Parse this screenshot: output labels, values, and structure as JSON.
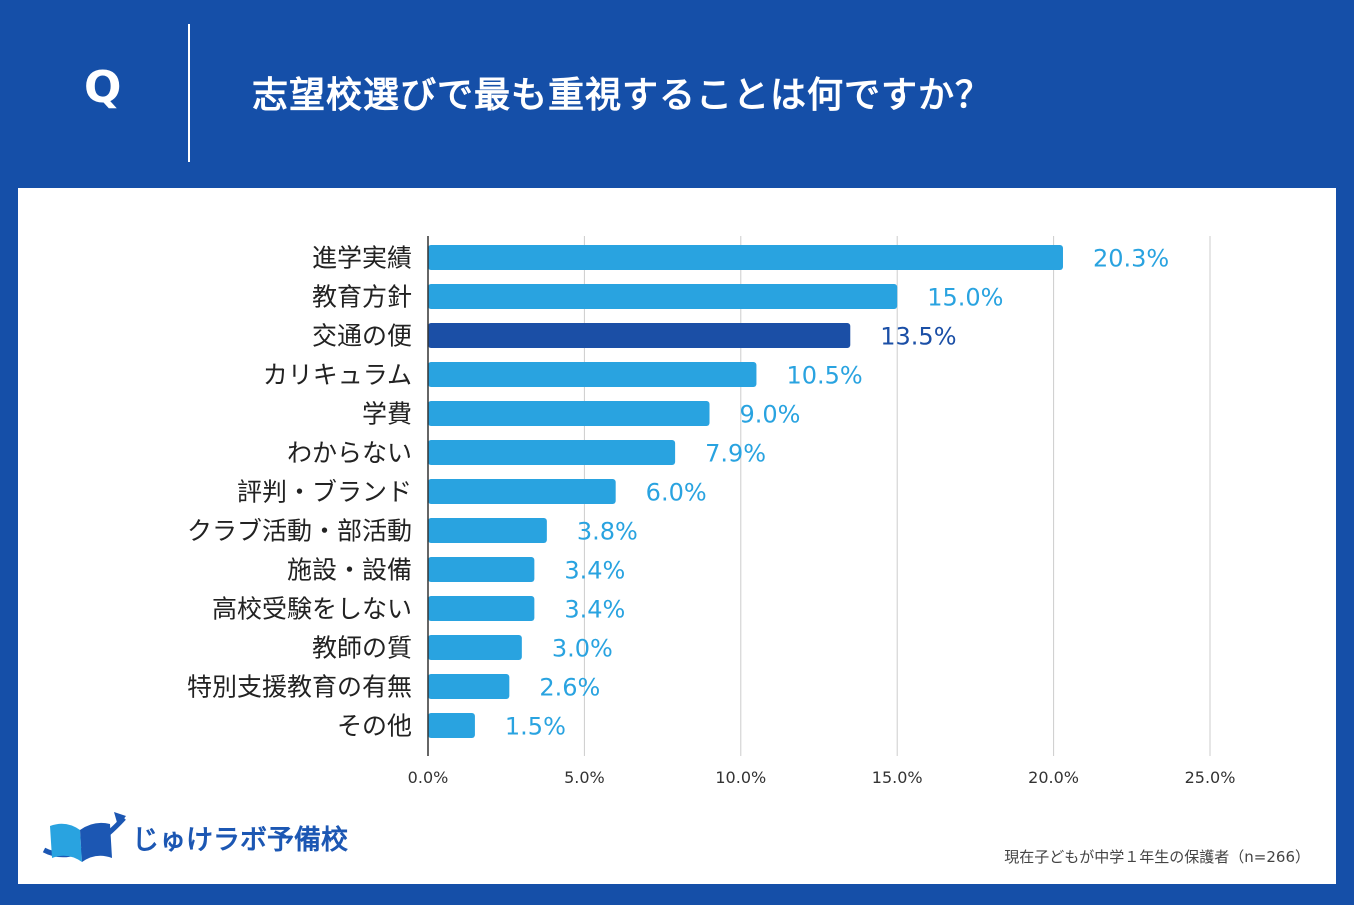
{
  "header": {
    "q_label": "Q",
    "question": "志望校選びで最も重視することは何ですか？"
  },
  "chart_data": {
    "type": "bar",
    "orientation": "horizontal",
    "categories": [
      "進学実績",
      "教育方針",
      "交通の便",
      "カリキュラム",
      "学費",
      "わからない",
      "評判・ブランド",
      "クラブ活動・部活動",
      "施設・設備",
      "高校受験をしない",
      "教師の質",
      "特別支援教育の有無",
      "その他"
    ],
    "values": [
      20.3,
      15.0,
      13.5,
      10.5,
      9.0,
      7.9,
      6.0,
      3.8,
      3.4,
      3.4,
      3.0,
      2.6,
      1.5
    ],
    "value_labels": [
      "20.3%",
      "15.0%",
      "13.5%",
      "10.5%",
      "9.0%",
      "7.9%",
      "6.0%",
      "3.8%",
      "3.4%",
      "3.4%",
      "3.0%",
      "2.6%",
      "1.5%"
    ],
    "highlight_index": 2,
    "xlim": [
      0,
      25
    ],
    "xticks": [
      0,
      5,
      10,
      15,
      20,
      25
    ],
    "xtick_labels": [
      "0.0%",
      "5.0%",
      "10.0%",
      "15.0%",
      "20.0%",
      "25.0%"
    ],
    "grid": true,
    "title": "志望校選びで最も重視することは何ですか？",
    "xlabel": "",
    "ylabel": ""
  },
  "colors": {
    "background": "#154fa8",
    "bar": "#29a3e0",
    "bar_highlight": "#1b4fa6",
    "grid": "#cccccc",
    "axis": "#333333"
  },
  "logo": {
    "text": "じゅけラボ予備校",
    "icon": "open-book-icon"
  },
  "footnote": "現在子どもが中学１年生の保護者（n=266）"
}
